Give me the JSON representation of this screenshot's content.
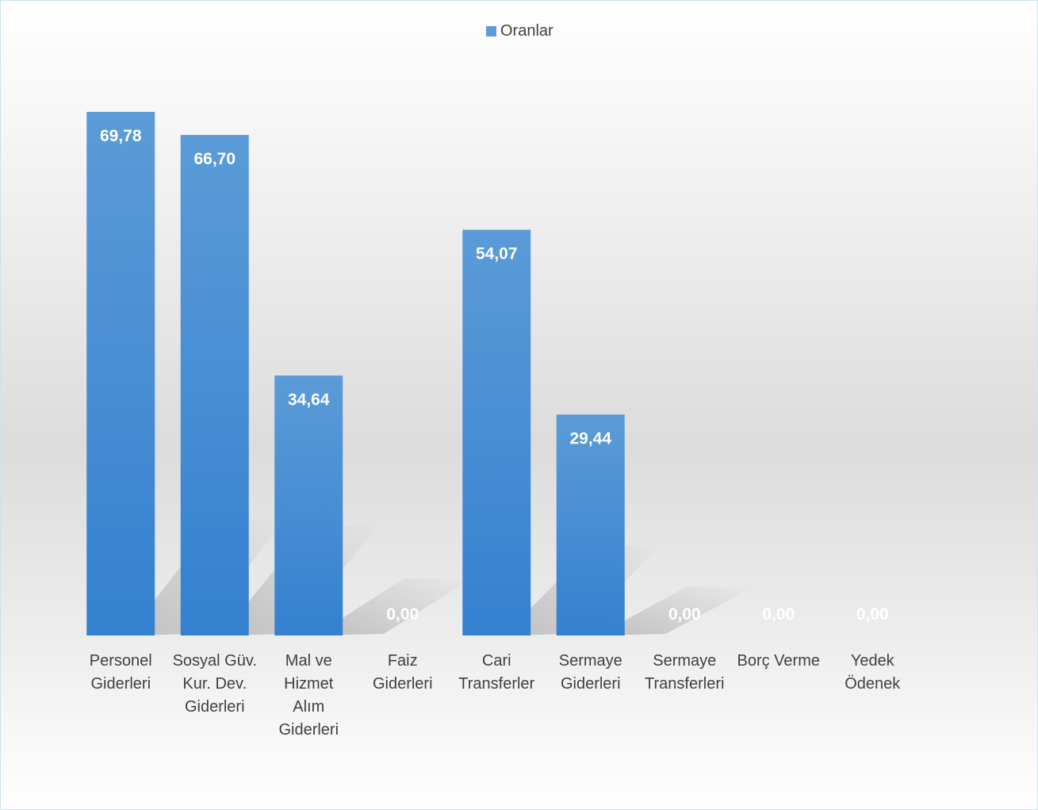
{
  "legend": {
    "label": "Oranlar"
  },
  "colors": {
    "bar_top": "#5b9bd8",
    "bar_bottom": "#3481cf",
    "label_inside": "#ffffff",
    "axis_text": "#404040"
  },
  "chart_data": {
    "type": "bar",
    "categories": [
      [
        "Personel",
        "Giderleri"
      ],
      [
        "Sosyal Güv.",
        "Kur. Dev.",
        "Giderleri"
      ],
      [
        "Mal ve",
        "Hizmet",
        "Alım",
        "Giderleri"
      ],
      [
        "Faiz",
        "Giderleri"
      ],
      [
        "Cari",
        "Transferler"
      ],
      [
        "Sermaye",
        "Giderleri"
      ],
      [
        "Sermaye",
        "Transferleri"
      ],
      [
        "Borç Verme"
      ],
      [
        "Yedek",
        "Ödenek"
      ]
    ],
    "series": [
      {
        "name": "Oranlar",
        "values": [
          69.78,
          66.7,
          34.64,
          0.0,
          54.07,
          29.44,
          0.0,
          0.0,
          0.0
        ]
      }
    ],
    "value_labels": [
      "69,78",
      "66,70",
      "34,64",
      "0,00",
      "54,07",
      "29,44",
      "0,00",
      "0,00",
      "0,00"
    ],
    "ylim": [
      0,
      80
    ],
    "grid": false,
    "legend_position": "top"
  }
}
